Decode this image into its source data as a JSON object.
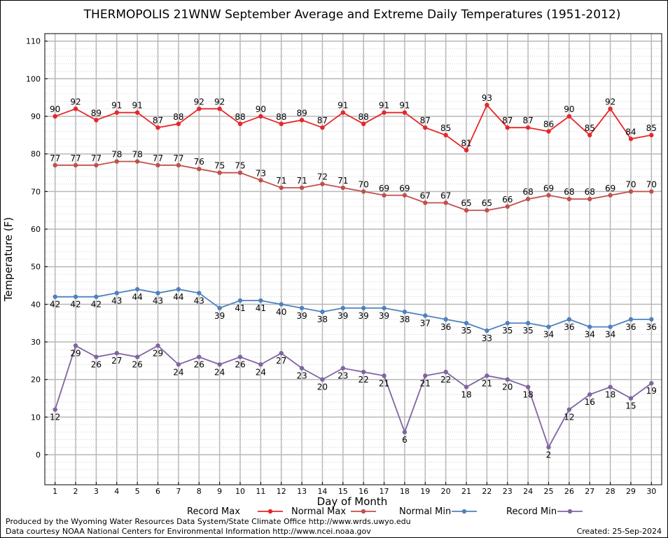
{
  "chart_data": {
    "type": "line",
    "title": "THERMOPOLIS 21WNW September Average and Extreme Daily Temperatures (1951-2012)",
    "xlabel": "Day of Month",
    "ylabel": "Temperature (F)",
    "x": [
      1,
      2,
      3,
      4,
      5,
      6,
      7,
      8,
      9,
      10,
      11,
      12,
      13,
      14,
      15,
      16,
      17,
      18,
      19,
      20,
      21,
      22,
      23,
      24,
      25,
      26,
      27,
      28,
      29,
      30
    ],
    "xlim": [
      0.5,
      30.5
    ],
    "ylim": [
      -8,
      112
    ],
    "yticks": [
      0,
      10,
      20,
      30,
      40,
      50,
      60,
      70,
      80,
      90,
      100,
      110
    ],
    "grid": true,
    "legend_position": "bottom",
    "series": [
      {
        "name": "Record Max",
        "color": "#e8262a",
        "label_position": "above",
        "values": [
          90,
          92,
          89,
          91,
          91,
          87,
          88,
          92,
          92,
          88,
          90,
          88,
          89,
          87,
          91,
          88,
          91,
          91,
          87,
          85,
          81,
          93,
          87,
          87,
          86,
          90,
          85,
          92,
          84,
          85
        ]
      },
      {
        "name": "Normal Max",
        "color": "#c0504d",
        "label_position": "above",
        "values": [
          77,
          77,
          77,
          78,
          78,
          77,
          77,
          76,
          75,
          75,
          73,
          71,
          71,
          72,
          71,
          70,
          69,
          69,
          67,
          67,
          65,
          65,
          66,
          68,
          69,
          68,
          68,
          69,
          70,
          70
        ]
      },
      {
        "name": "Normal Min",
        "color": "#4f81bd",
        "label_position": "below",
        "values": [
          42,
          42,
          42,
          43,
          44,
          43,
          44,
          43,
          39,
          41,
          41,
          40,
          39,
          38,
          39,
          39,
          39,
          38,
          37,
          36,
          35,
          33,
          35,
          35,
          34,
          36,
          34,
          34,
          36,
          36
        ]
      },
      {
        "name": "Record Min",
        "color": "#8064a2",
        "label_position": "below",
        "values": [
          12,
          29,
          26,
          27,
          26,
          29,
          24,
          26,
          24,
          26,
          24,
          27,
          23,
          20,
          23,
          22,
          21,
          6,
          21,
          22,
          18,
          21,
          20,
          18,
          2,
          12,
          16,
          18,
          15,
          19
        ]
      }
    ]
  },
  "footer": {
    "produced_by": "Produced by the Wyoming Water Resources Data System/State Climate Office http://www.wrds.uwyo.edu",
    "courtesy": "Data courtesy NOAA National Centers for Environmental Information http://www.ncei.noaa.gov",
    "created": "Created:  25-Sep-2024"
  }
}
